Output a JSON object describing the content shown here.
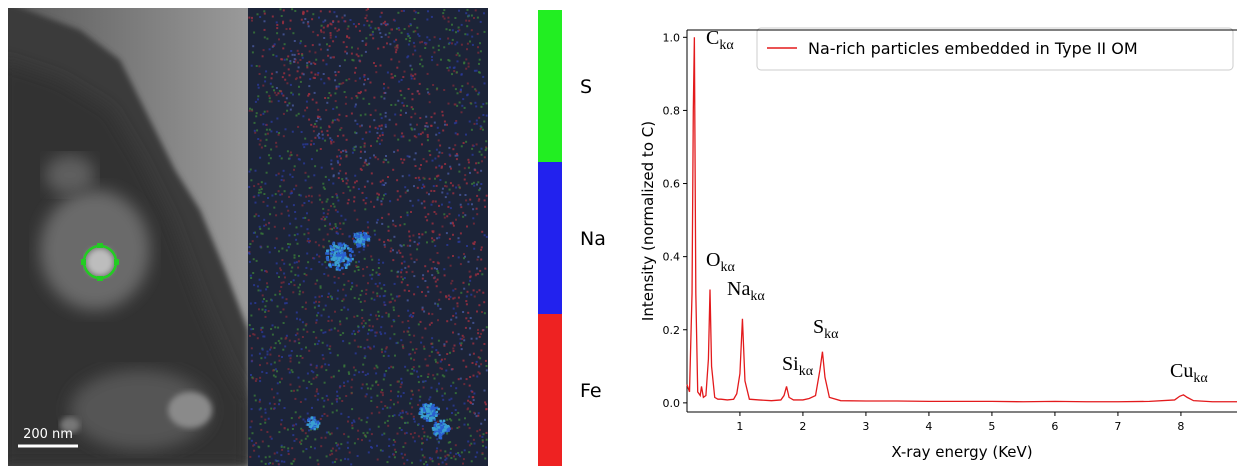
{
  "scale_bar": "200 nm",
  "colorbar": {
    "labels": [
      "S",
      "Na",
      "Fe"
    ],
    "colors": [
      "#22ee22",
      "#2222ee",
      "#ee2222"
    ]
  },
  "chart_data": {
    "type": "line",
    "xlabel": "X-ray energy (KeV)",
    "ylabel": "Intensity (normalized to C)",
    "x": [
      0.16,
      0.2,
      0.24,
      0.26,
      0.277,
      0.3,
      0.33,
      0.37,
      0.39,
      0.42,
      0.46,
      0.5,
      0.525,
      0.55,
      0.6,
      0.65,
      0.7,
      0.8,
      0.9,
      0.95,
      1.0,
      1.04,
      1.08,
      1.15,
      1.3,
      1.5,
      1.65,
      1.7,
      1.74,
      1.78,
      1.85,
      2.0,
      2.1,
      2.2,
      2.27,
      2.31,
      2.35,
      2.42,
      2.6,
      3.0,
      3.5,
      4.0,
      4.5,
      5.0,
      5.5,
      6.0,
      6.5,
      7.0,
      7.5,
      7.9,
      7.98,
      8.04,
      8.1,
      8.2,
      8.5,
      8.89
    ],
    "series": [
      {
        "name": "Na-rich particles embedded in Type II OM",
        "color": "#e31a1c",
        "values": [
          0.05,
          0.03,
          0.3,
          0.8,
          1.0,
          0.3,
          0.03,
          0.02,
          0.045,
          0.015,
          0.02,
          0.12,
          0.31,
          0.1,
          0.015,
          0.01,
          0.01,
          0.008,
          0.01,
          0.025,
          0.08,
          0.23,
          0.06,
          0.01,
          0.008,
          0.006,
          0.008,
          0.02,
          0.045,
          0.015,
          0.008,
          0.008,
          0.012,
          0.02,
          0.09,
          0.14,
          0.07,
          0.015,
          0.006,
          0.005,
          0.005,
          0.004,
          0.004,
          0.004,
          0.003,
          0.004,
          0.003,
          0.003,
          0.004,
          0.008,
          0.018,
          0.022,
          0.015,
          0.006,
          0.003,
          0.003
        ]
      }
    ],
    "xlim": [
      0.16,
      8.89
    ],
    "ylim": [
      -0.025,
      1.02
    ],
    "xticks": [
      1,
      2,
      3,
      4,
      5,
      6,
      7,
      8
    ],
    "yticks": [
      {
        "value": 0,
        "label": "0.0"
      },
      0.2,
      0.4,
      0.6,
      0.8,
      {
        "value": 1,
        "label": "1.0"
      }
    ],
    "legend": "upper right",
    "annotations": [
      {
        "base": "C",
        "sub": "kα"
      },
      {
        "base": "O",
        "sub": "kα"
      },
      {
        "base": "Na",
        "sub": "kα"
      },
      {
        "base": "Si",
        "sub": "kα"
      },
      {
        "base": "S",
        "sub": "kα"
      },
      {
        "base": "Cu",
        "sub": "kα"
      }
    ]
  }
}
